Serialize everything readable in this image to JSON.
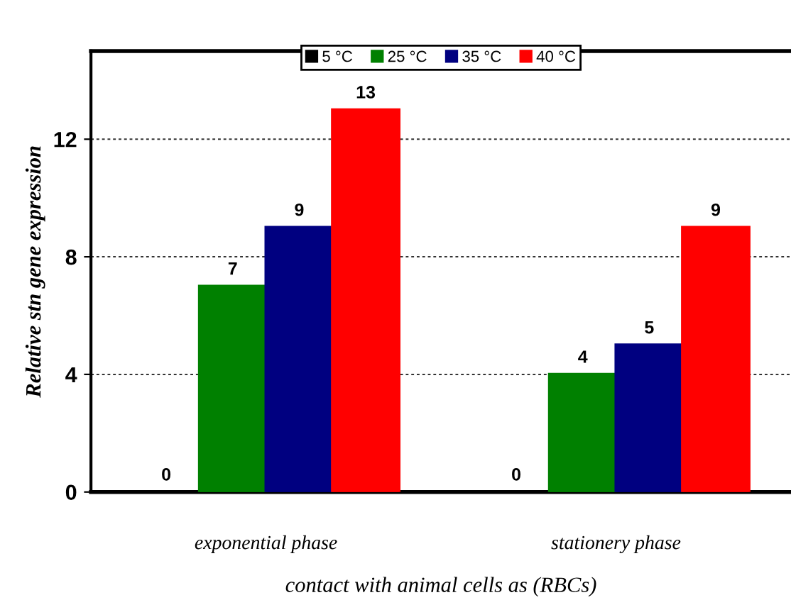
{
  "chart_data": {
    "type": "bar",
    "xlabel": "contact with animal cells as (RBCs)",
    "ylabel": "Relative stn gene expression",
    "categories": [
      "exponential phase",
      "stationery phase"
    ],
    "series": [
      {
        "name": "5 °C",
        "color": "#000000",
        "values": [
          0,
          0
        ]
      },
      {
        "name": "25 °C",
        "color": "#008000",
        "values": [
          7,
          4
        ]
      },
      {
        "name": "35 °C",
        "color": "#000080",
        "values": [
          9,
          5
        ]
      },
      {
        "name": "40 °C",
        "color": "#ff0000",
        "values": [
          13,
          9
        ]
      }
    ],
    "ylim": [
      0,
      15
    ],
    "yticks": [
      0,
      4,
      8,
      12
    ],
    "grid": "y",
    "legend": "top",
    "data_labels": true
  }
}
